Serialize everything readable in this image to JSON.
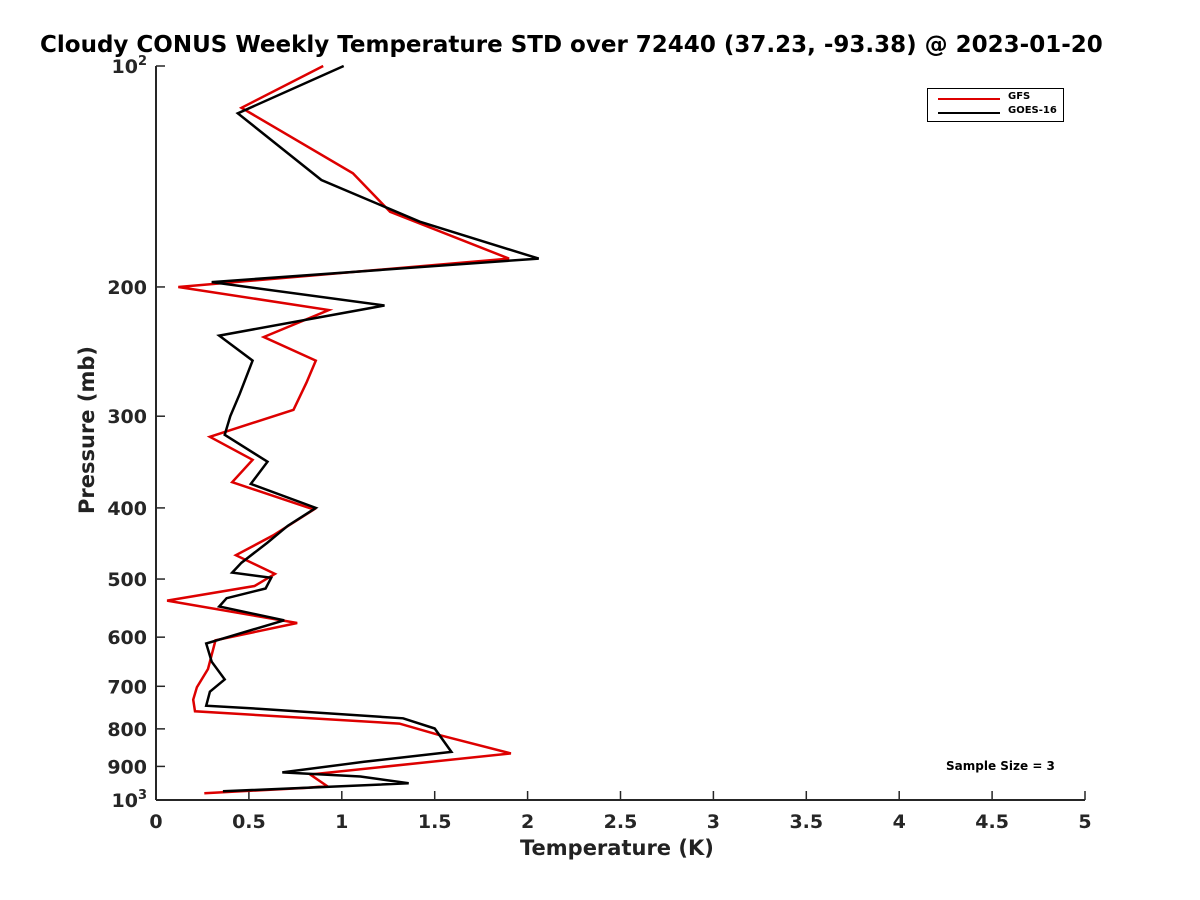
{
  "chart_data": {
    "type": "line",
    "title": "Cloudy CONUS Weekly Temperature STD over 72440 (37.23, -93.38) @ 2023-01-20",
    "xlabel": "Temperature (K)",
    "ylabel": "Pressure (mb)",
    "xlim": [
      0,
      5
    ],
    "ylim": [
      100,
      1000
    ],
    "y_scale": "log",
    "y_reversed": true,
    "grid": false,
    "legend_position": "top-right",
    "x_ticks": [
      "0",
      "0.5",
      "1",
      "1.5",
      "2",
      "2.5",
      "3",
      "3.5",
      "4",
      "4.5",
      "5"
    ],
    "y_ticks": [
      {
        "value": 200,
        "label": "200"
      },
      {
        "value": 300,
        "label": "300"
      },
      {
        "value": 400,
        "label": "400"
      },
      {
        "value": 500,
        "label": "500"
      },
      {
        "value": 600,
        "label": "600"
      },
      {
        "value": 700,
        "label": "700"
      },
      {
        "value": 800,
        "label": "800"
      },
      {
        "value": 900,
        "label": "900"
      }
    ],
    "y_tick_top": {
      "base": "10",
      "exp": "2",
      "value": 100
    },
    "y_tick_bottom": {
      "base": "10",
      "exp": "3",
      "value": 1000
    },
    "series": [
      {
        "name": "GFS",
        "color": "#dd0000",
        "x": [
          0.9,
          0.46,
          1.06,
          1.26,
          1.9,
          0.12,
          0.93,
          0.58,
          0.86,
          0.81,
          0.74,
          0.29,
          0.52,
          0.41,
          0.85,
          0.63,
          0.43,
          0.64,
          0.53,
          0.06,
          0.76,
          0.32,
          0.28,
          0.22,
          0.2,
          0.21,
          1.31,
          1.52,
          1.91,
          0.83,
          0.92,
          0.82,
          0.26
        ],
        "y": [
          100,
          114,
          140,
          158,
          183,
          200,
          215,
          234,
          252,
          270,
          294,
          320,
          344,
          369,
          402,
          436,
          464,
          492,
          511,
          535,
          574,
          606,
          663,
          702,
          730,
          757,
          787,
          815,
          864,
          923,
          957,
          962,
          979
        ]
      },
      {
        "name": "GOES-16",
        "color": "#000000",
        "x": [
          1.01,
          0.44,
          0.89,
          1.42,
          2.06,
          0.3,
          1.23,
          0.34,
          0.52,
          0.45,
          0.4,
          0.37,
          0.6,
          0.51,
          0.86,
          0.71,
          0.6,
          0.46,
          0.41,
          0.62,
          0.59,
          0.38,
          0.34,
          0.69,
          0.27,
          0.3,
          0.37,
          0.29,
          0.27,
          0.55,
          1.33,
          1.5,
          1.59,
          1.12,
          0.68,
          1.1,
          1.36,
          0.36
        ],
        "y": [
          100,
          116,
          143,
          163,
          183,
          197,
          212,
          233,
          252,
          280,
          300,
          318,
          346,
          371,
          400,
          423,
          446,
          475,
          490,
          498,
          515,
          531,
          545,
          569,
          612,
          648,
          685,
          712,
          744,
          751,
          774,
          799,
          860,
          887,
          917,
          929,
          949,
          973
        ]
      }
    ],
    "annotation": "Sample Size = 3"
  }
}
